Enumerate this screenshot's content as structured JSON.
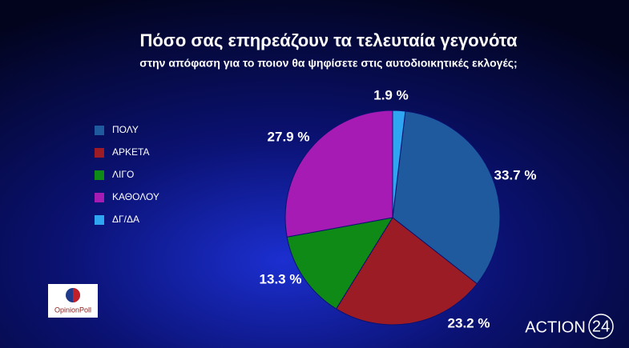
{
  "chart_data": {
    "type": "pie",
    "title": "Πόσο σας επηρεάζουν τα τελευταία γεγονότα",
    "subtitle": "στην απόφαση για το ποιον θα ψηφίσετε στις αυτοδιοικητικές εκλογές;",
    "categories": [
      "ΠΟΛΥ",
      "ΑΡΚΕΤΑ",
      "ΛΙΓΟ",
      "ΚΑΘΟΛΟΥ",
      "ΔΓ/ΔΑ"
    ],
    "values": [
      33.7,
      23.2,
      13.3,
      27.9,
      1.9
    ],
    "value_labels": [
      "33.7 %",
      "23.2 %",
      "13.3 %",
      "27.9 %",
      "1.9 %"
    ],
    "colors": [
      "#1f5a9e",
      "#9b1c24",
      "#0f8a17",
      "#a51bb3",
      "#2ea6f2"
    ],
    "legend": "left"
  },
  "branding": {
    "poll_logo": "OpinionPoll",
    "channel": "ACTION",
    "channel_number": "24"
  }
}
